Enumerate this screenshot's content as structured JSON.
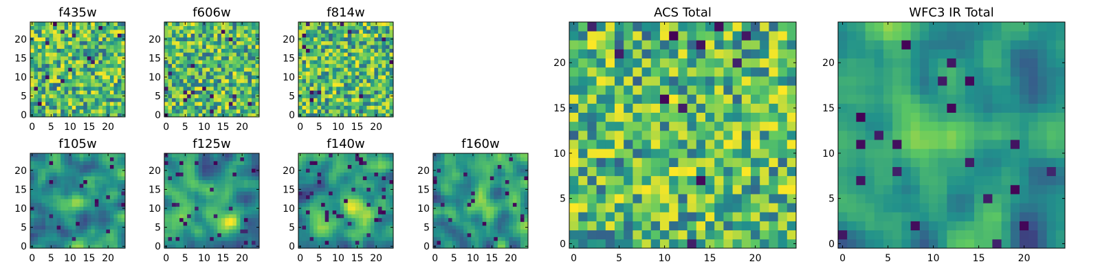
{
  "figure": {
    "background": "#ffffff",
    "colormap": "viridis",
    "colormap_stops": [
      "#440154",
      "#3b528b",
      "#21918c",
      "#5ec962",
      "#fde725"
    ]
  },
  "chart_data": [
    {
      "type": "heatmap",
      "title": "f435w",
      "grid": false,
      "xlim": [
        -0.5,
        24.5
      ],
      "ylim": [
        -0.5,
        24.5
      ],
      "xticks": [
        0,
        5,
        10,
        15,
        20
      ],
      "yticks": [
        0,
        5,
        10,
        15,
        20
      ],
      "texture": "noise",
      "seed": 11,
      "dark_fraction": 0.03
    },
    {
      "type": "heatmap",
      "title": "f606w",
      "grid": false,
      "xlim": [
        -0.5,
        24.5
      ],
      "ylim": [
        -0.5,
        24.5
      ],
      "xticks": [
        0,
        5,
        10,
        15,
        20
      ],
      "yticks": [
        0,
        5,
        10,
        15,
        20
      ],
      "texture": "noise",
      "seed": 23,
      "dark_fraction": 0.02
    },
    {
      "type": "heatmap",
      "title": "f814w",
      "grid": false,
      "xlim": [
        -0.5,
        24.5
      ],
      "ylim": [
        -0.5,
        24.5
      ],
      "xticks": [
        0,
        5,
        10,
        15,
        20
      ],
      "yticks": [
        0,
        5,
        10,
        15,
        20
      ],
      "texture": "noise",
      "seed": 37,
      "dark_fraction": 0.025
    },
    {
      "type": "heatmap",
      "title": "f105w",
      "grid": false,
      "xlim": [
        -0.5,
        24.5
      ],
      "ylim": [
        -0.5,
        24.5
      ],
      "xticks": [
        0,
        5,
        10,
        15,
        20
      ],
      "yticks": [
        0,
        5,
        10,
        15,
        20
      ],
      "texture": "smooth",
      "seed": 41,
      "dark_fraction": 0.02,
      "bright_center": [
        12,
        12
      ]
    },
    {
      "type": "heatmap",
      "title": "f125w",
      "grid": false,
      "xlim": [
        -0.5,
        24.5
      ],
      "ylim": [
        -0.5,
        24.5
      ],
      "xticks": [
        0,
        5,
        10,
        15,
        20
      ],
      "yticks": [
        0,
        5,
        10,
        15,
        20
      ],
      "texture": "smooth",
      "seed": 53,
      "dark_fraction": 0.06,
      "bright_center": [
        15,
        8
      ]
    },
    {
      "type": "heatmap",
      "title": "f140w",
      "grid": false,
      "xlim": [
        -0.5,
        24.5
      ],
      "ylim": [
        -0.5,
        24.5
      ],
      "xticks": [
        0,
        5,
        10,
        15,
        20
      ],
      "yticks": [
        0,
        5,
        10,
        15,
        20
      ],
      "texture": "smooth",
      "seed": 67,
      "dark_fraction": 0.05,
      "bright_center": [
        15,
        10
      ]
    },
    {
      "type": "heatmap",
      "title": "f160w",
      "grid": false,
      "xlim": [
        -0.5,
        24.5
      ],
      "ylim": [
        -0.5,
        24.5
      ],
      "xticks": [
        0,
        5,
        10,
        15,
        20
      ],
      "yticks": [
        0,
        5,
        10,
        15,
        20
      ],
      "texture": "smooth",
      "seed": 79,
      "dark_fraction": 0.05,
      "bright_center": [
        12,
        12
      ]
    },
    {
      "type": "heatmap",
      "title": "ACS Total",
      "grid": false,
      "xlim": [
        -0.5,
        24.5
      ],
      "ylim": [
        -0.5,
        24.5
      ],
      "xticks": [
        0,
        5,
        10,
        15,
        20
      ],
      "yticks": [
        0,
        5,
        10,
        15,
        20
      ],
      "texture": "noise",
      "seed": 97,
      "dark_fraction": 0.02
    },
    {
      "type": "heatmap",
      "title": "WFC3 IR Total",
      "grid": false,
      "xlim": [
        -0.5,
        24.5
      ],
      "ylim": [
        -0.5,
        24.5
      ],
      "xticks": [
        0,
        5,
        10,
        15,
        20
      ],
      "yticks": [
        0,
        5,
        10,
        15,
        20
      ],
      "texture": "smooth",
      "seed": 131,
      "dark_fraction": 0.04,
      "bright_center": [
        12,
        12
      ]
    }
  ]
}
